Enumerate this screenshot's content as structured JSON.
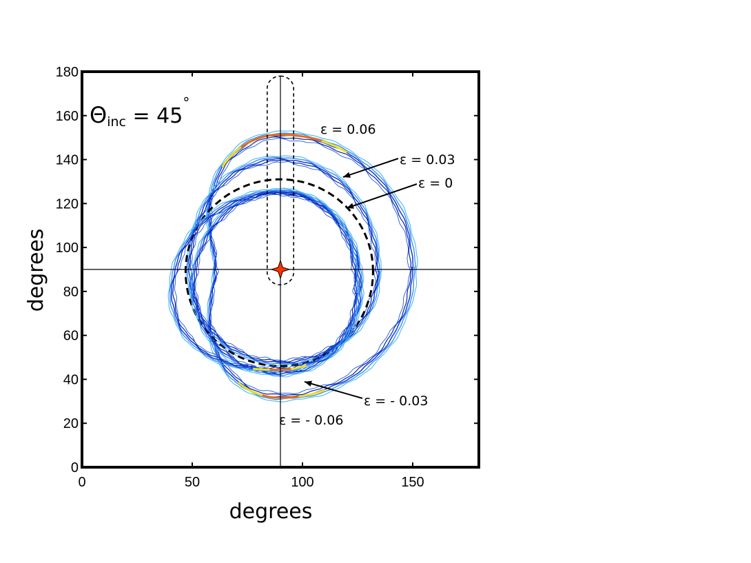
{
  "chart_data": {
    "type": "line",
    "title": "",
    "xlabel": "degrees",
    "ylabel": "degrees",
    "xlim": [
      0,
      180
    ],
    "ylim": [
      0,
      180
    ],
    "xticks": [
      0,
      50,
      100,
      150
    ],
    "yticks": [
      0,
      20,
      40,
      60,
      80,
      100,
      120,
      140,
      160,
      180
    ],
    "grid": false,
    "annotation_theta": {
      "symbol": "Θ",
      "subscript": "inc",
      "value": " = 45",
      "degree": "°"
    },
    "crosshair": {
      "x": 90,
      "y": 90
    },
    "marker": {
      "x": 90,
      "y": 90,
      "shape": "star",
      "color": "#ff3300"
    },
    "window": {
      "x_min": 84,
      "x_max": 96,
      "y_min": 83,
      "y_max": 178
    },
    "rings": [
      {
        "label": "ε = 0.06",
        "center": [
          90,
          91
        ],
        "radii": [
          61,
          61,
          30,
          60,
          61
        ],
        "style": "contour",
        "hot": [
          0,
          180
        ]
      },
      {
        "label": "ε = 0.03",
        "center": [
          90,
          89
        ],
        "radii": [
          45,
          52,
          42,
          42,
          45
        ],
        "style": "contour",
        "hot": []
      },
      {
        "label": "ε = 0",
        "center": [
          90,
          89
        ],
        "radii": [
          42,
          42,
          43,
          43,
          42
        ],
        "style": "dashed",
        "hot": []
      },
      {
        "label": "ε = - 0.03",
        "center": [
          90,
          82
        ],
        "radii": [
          37,
          44,
          40,
          40,
          37
        ],
        "style": "contour",
        "hot": []
      },
      {
        "label": "ε = - 0.06",
        "center": [
          90,
          79
        ],
        "radii": [
          35,
          47,
          50,
          35,
          35
        ],
        "style": "contour",
        "hot": [
          0
        ]
      }
    ],
    "labels": [
      {
        "text": "ε = 0.06"
      },
      {
        "text": "ε = 0.03"
      },
      {
        "text": "ε = 0"
      },
      {
        "text": "ε = - 0.03"
      },
      {
        "text": "ε = - 0.06"
      }
    ]
  }
}
